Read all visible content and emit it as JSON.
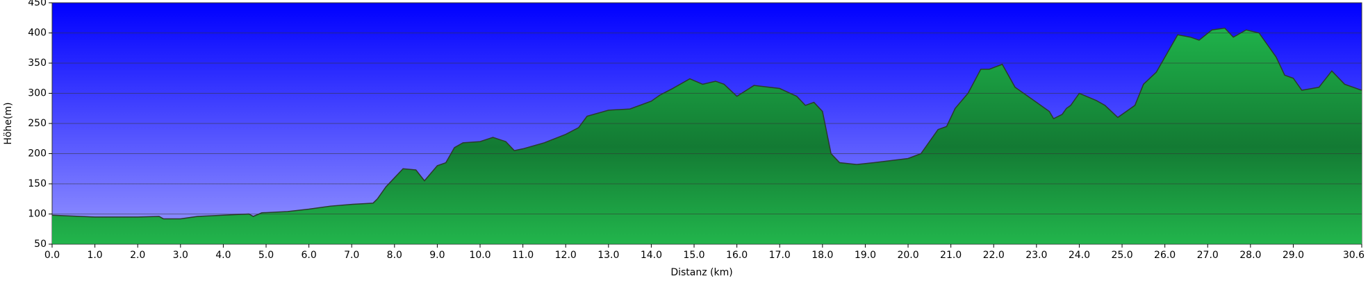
{
  "chart_data": {
    "type": "area",
    "xlabel": "Distanz   (km)",
    "ylabel": "Höhe(m)",
    "x": [
      0,
      1.0,
      2.0,
      2.5,
      2.6,
      3.0,
      3.4,
      4.0,
      4.6,
      4.7,
      4.9,
      5.5,
      6.0,
      6.5,
      7.0,
      7.5,
      7.6,
      7.8,
      8.0,
      8.2,
      8.5,
      8.7,
      9.0,
      9.2,
      9.4,
      9.6,
      10.0,
      10.3,
      10.6,
      10.8,
      11.0,
      11.5,
      12.0,
      12.3,
      12.5,
      13.0,
      13.5,
      14.0,
      14.2,
      14.5,
      14.9,
      15.2,
      15.5,
      15.7,
      16.0,
      16.4,
      17.0,
      17.4,
      17.6,
      17.8,
      18.0,
      18.2,
      18.4,
      18.8,
      19.2,
      20.0,
      20.3,
      20.7,
      20.9,
      21.1,
      21.4,
      21.7,
      21.9,
      22.2,
      22.5,
      23.0,
      23.3,
      23.4,
      23.6,
      23.7,
      23.8,
      24.0,
      24.4,
      24.6,
      24.9,
      25.1,
      25.3,
      25.5,
      25.8,
      26.3,
      26.6,
      26.8,
      27.1,
      27.4,
      27.6,
      27.9,
      28.2,
      28.6,
      28.8,
      29.0,
      29.2,
      29.6,
      29.9,
      30.2,
      30.6
    ],
    "values": [
      98,
      95,
      95,
      96,
      92,
      92,
      96,
      98,
      100,
      96,
      102,
      104,
      108,
      113,
      116,
      118,
      125,
      145,
      160,
      175,
      173,
      155,
      180,
      185,
      210,
      218,
      220,
      227,
      220,
      205,
      208,
      218,
      232,
      243,
      262,
      272,
      274,
      287,
      297,
      308,
      324,
      315,
      320,
      315,
      295,
      313,
      308,
      295,
      280,
      285,
      270,
      200,
      185,
      182,
      185,
      192,
      200,
      240,
      245,
      275,
      300,
      340,
      340,
      348,
      310,
      285,
      270,
      258,
      265,
      275,
      280,
      300,
      288,
      280,
      260,
      270,
      280,
      315,
      335,
      397,
      393,
      388,
      405,
      408,
      393,
      405,
      400,
      360,
      330,
      325,
      305,
      310,
      337,
      315,
      305
    ],
    "xlim": [
      0,
      30.6
    ],
    "xticks": [
      {
        "value": 0,
        "label": "0.0"
      },
      {
        "value": 1,
        "label": "1.0"
      },
      {
        "value": 2,
        "label": "2.0"
      },
      {
        "value": 3,
        "label": "3.0"
      },
      {
        "value": 4,
        "label": "4.0"
      },
      {
        "value": 5,
        "label": "5.0"
      },
      {
        "value": 6,
        "label": "6.0"
      },
      {
        "value": 7,
        "label": "7.0"
      },
      {
        "value": 8,
        "label": "8.0"
      },
      {
        "value": 9,
        "label": "9.0"
      },
      {
        "value": 10,
        "label": "10.0"
      },
      {
        "value": 11,
        "label": "11.0"
      },
      {
        "value": 12,
        "label": "12.0"
      },
      {
        "value": 13,
        "label": "13.0"
      },
      {
        "value": 14,
        "label": "14.0"
      },
      {
        "value": 15,
        "label": "15.0"
      },
      {
        "value": 16,
        "label": "16.0"
      },
      {
        "value": 17,
        "label": "17.0"
      },
      {
        "value": 18,
        "label": "18.0"
      },
      {
        "value": 19,
        "label": "19.0"
      },
      {
        "value": 20,
        "label": "20.0"
      },
      {
        "value": 21,
        "label": "21.0"
      },
      {
        "value": 22,
        "label": "22.0"
      },
      {
        "value": 23,
        "label": "23.0"
      },
      {
        "value": 24,
        "label": "24.0"
      },
      {
        "value": 25,
        "label": "25.0"
      },
      {
        "value": 26,
        "label": "26.0"
      },
      {
        "value": 27,
        "label": "27.0"
      },
      {
        "value": 28,
        "label": "28.0"
      },
      {
        "value": 29,
        "label": "29.0"
      },
      30.6
    ],
    "ylim": [
      50,
      450
    ],
    "yticks": [
      50,
      100,
      150,
      200,
      250,
      300,
      350,
      400,
      450
    ],
    "grid": true
  }
}
